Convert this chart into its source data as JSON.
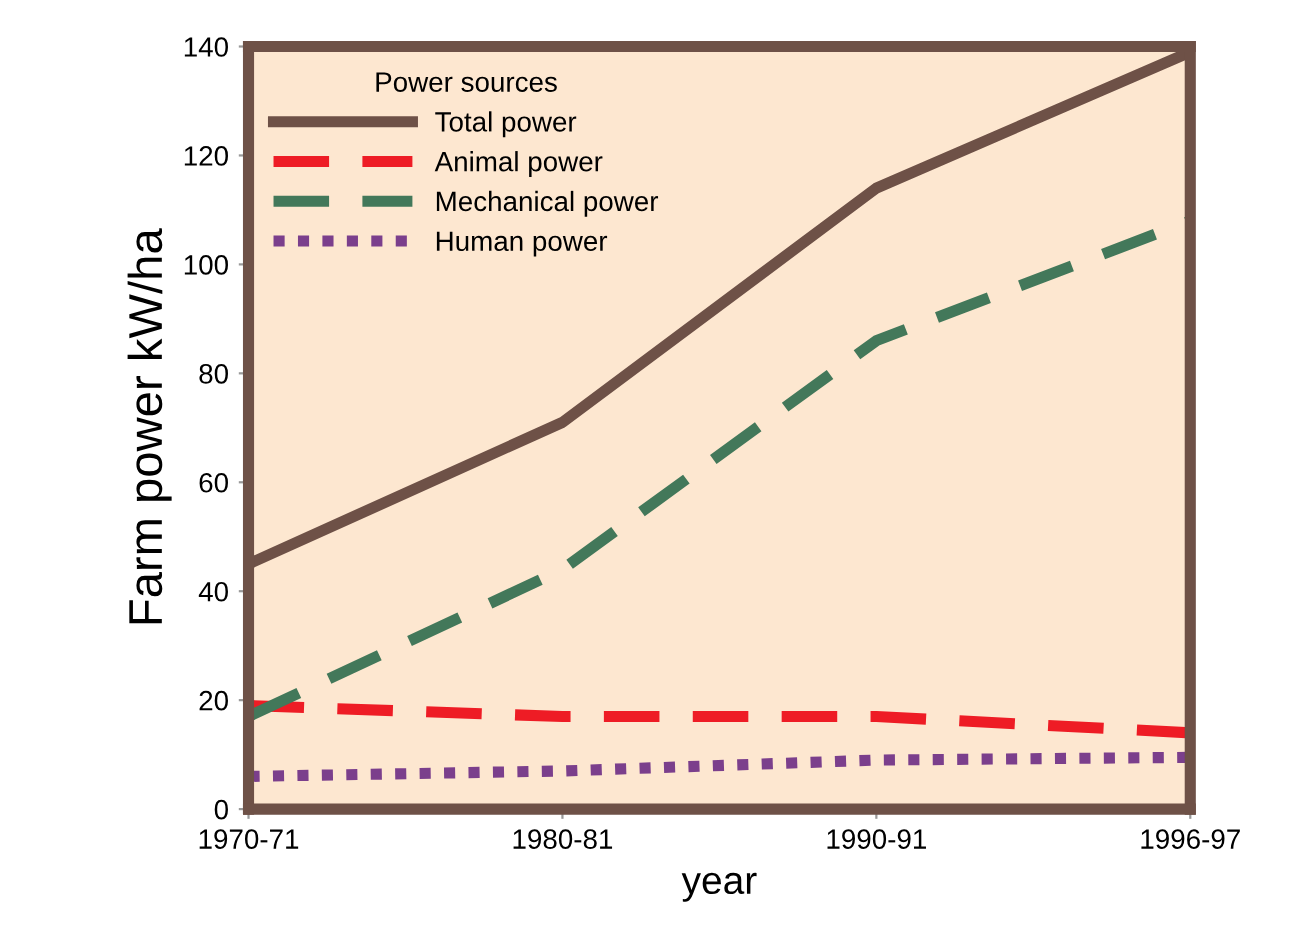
{
  "chart_data": {
    "type": "line",
    "xlabel": "year",
    "ylabel": "Farm power kW/ha",
    "legend_title": "Power sources",
    "categories": [
      "1970-71",
      "1980-81",
      "1990-91",
      "1996-97"
    ],
    "series": [
      {
        "name": "Total power",
        "color": "#6e5147",
        "line_style": "solid",
        "values": [
          45,
          71,
          114,
          139
        ]
      },
      {
        "name": "Animal power",
        "color": "#ee1c25",
        "line_style": "dashed",
        "values": [
          19,
          17,
          17,
          14
        ]
      },
      {
        "name": "Mechanical power",
        "color": "#43785a",
        "line_style": "dashed",
        "values": [
          17,
          44,
          86,
          108
        ]
      },
      {
        "name": "Human power",
        "color": "#7b3f8c",
        "line_style": "dotted",
        "values": [
          6,
          7,
          9,
          9.5
        ]
      }
    ],
    "ylim": [
      0,
      140
    ],
    "yticks": [
      0,
      20,
      40,
      60,
      80,
      100,
      120,
      140
    ],
    "grid": false,
    "legend": "top left"
  }
}
